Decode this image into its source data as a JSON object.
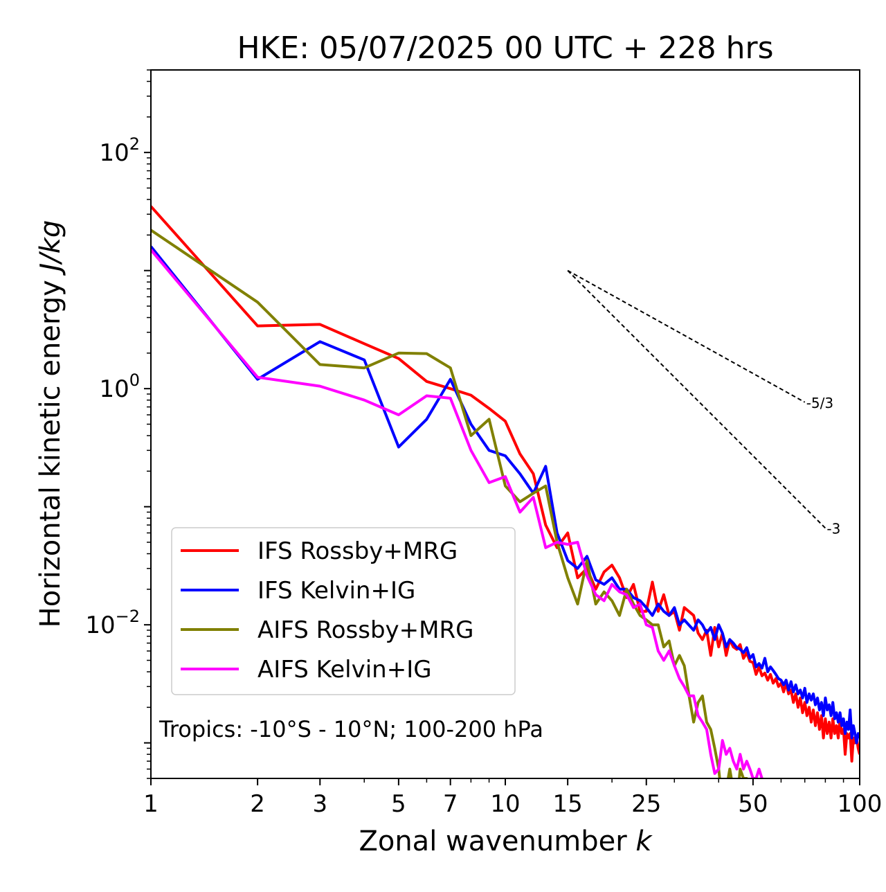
{
  "chart_data": {
    "type": "line",
    "title": "HKE: 05/07/2025 00 UTC + 228 hrs",
    "xlabel_text": "Zonal wavenumber ",
    "xlabel_italic": "k",
    "ylabel_text": "Horizontal kinetic energy ",
    "ylabel_italic": "J/kg",
    "x_scale": "log",
    "y_scale": "log",
    "xlim": [
      1,
      100
    ],
    "ylim": [
      0.0005,
      500
    ],
    "x_ticks": [
      1,
      2,
      3,
      5,
      7,
      10,
      15,
      25,
      50,
      100
    ],
    "x_tick_labels": [
      "1",
      "2",
      "3",
      "5",
      "7",
      "10",
      "15",
      "25",
      "50",
      "100"
    ],
    "y_ticks": [
      {
        "value": 0.01,
        "base": "10",
        "exp": "−2"
      },
      {
        "value": 1,
        "base": "10",
        "exp": "0"
      },
      {
        "value": 100,
        "base": "10",
        "exp": "2"
      }
    ],
    "grid": false,
    "legend_position": "lower-left",
    "annotation": "Tropics: -10°S - 10°N; 100-200 hPa",
    "reference_lines": [
      {
        "label": "-5/3",
        "slope": -1.6667,
        "x0": 15,
        "y0": 10,
        "x1": 70
      },
      {
        "label": "-3",
        "slope": -3,
        "x0": 15,
        "y0": 10,
        "x1": 80
      }
    ],
    "series": [
      {
        "name": "IFS Rossby+MRG",
        "color": "#ff0000",
        "points": [
          [
            1,
            35
          ],
          [
            2,
            3.4
          ],
          [
            3,
            3.5
          ],
          [
            4,
            2.4
          ],
          [
            5,
            1.8
          ],
          [
            6,
            1.15
          ],
          [
            7,
            1.0
          ],
          [
            8,
            0.88
          ],
          [
            9,
            0.68
          ],
          [
            10,
            0.53
          ],
          [
            11,
            0.28
          ],
          [
            12,
            0.19
          ],
          [
            13,
            0.07
          ],
          [
            14,
            0.045
          ],
          [
            15,
            0.06
          ],
          [
            16,
            0.025
          ],
          [
            17,
            0.03
          ],
          [
            18,
            0.02
          ],
          [
            19,
            0.028
          ],
          [
            20,
            0.032
          ],
          [
            21,
            0.025
          ],
          [
            22,
            0.017
          ],
          [
            23,
            0.022
          ],
          [
            24,
            0.013
          ],
          [
            25,
            0.013
          ],
          [
            26,
            0.023
          ],
          [
            27,
            0.013
          ],
          [
            28,
            0.018
          ],
          [
            29,
            0.012
          ],
          [
            30,
            0.013
          ],
          [
            31,
            0.009
          ],
          [
            32,
            0.014
          ],
          [
            34,
            0.012
          ],
          [
            35,
            0.0085
          ],
          [
            36,
            0.0075
          ],
          [
            37,
            0.009
          ],
          [
            38,
            0.0055
          ],
          [
            39,
            0.0095
          ],
          [
            40,
            0.0065
          ],
          [
            41,
            0.0085
          ],
          [
            42,
            0.0055
          ],
          [
            43,
            0.0075
          ],
          [
            44,
            0.0065
          ],
          [
            45,
            0.0062
          ],
          [
            46,
            0.0068
          ],
          [
            47,
            0.0052
          ],
          [
            48,
            0.0058
          ],
          [
            49,
            0.0049
          ],
          [
            50,
            0.0048
          ],
          [
            51,
            0.0038
          ],
          [
            52,
            0.0044
          ],
          [
            53,
            0.0037
          ],
          [
            54,
            0.0039
          ],
          [
            55,
            0.0034
          ],
          [
            56,
            0.0038
          ],
          [
            57,
            0.0032
          ],
          [
            58,
            0.0035
          ],
          [
            59,
            0.003
          ],
          [
            60,
            0.0032
          ],
          [
            61,
            0.0027
          ],
          [
            62,
            0.0032
          ],
          [
            63,
            0.0026
          ],
          [
            64,
            0.0028
          ],
          [
            65,
            0.0022
          ],
          [
            66,
            0.0026
          ],
          [
            67,
            0.002
          ],
          [
            68,
            0.0024
          ],
          [
            69,
            0.0018
          ],
          [
            70,
            0.0022
          ],
          [
            71,
            0.0017
          ],
          [
            72,
            0.002
          ],
          [
            73,
            0.0015
          ],
          [
            74,
            0.0019
          ],
          [
            75,
            0.0014
          ],
          [
            76,
            0.0018
          ],
          [
            77,
            0.0013
          ],
          [
            78,
            0.0017
          ],
          [
            79,
            0.0011
          ],
          [
            80,
            0.0016
          ],
          [
            81,
            0.0012
          ],
          [
            82,
            0.0015
          ],
          [
            83,
            0.0011
          ],
          [
            84,
            0.0016
          ],
          [
            85,
            0.0012
          ],
          [
            86,
            0.0014
          ],
          [
            87,
            0.0011
          ],
          [
            88,
            0.0016
          ],
          [
            89,
            0.0012
          ],
          [
            90,
            0.0013
          ],
          [
            91,
            0.0008
          ],
          [
            92,
            0.0012
          ],
          [
            93,
            0.0011
          ],
          [
            94,
            0.0012
          ],
          [
            95,
            0.0007
          ],
          [
            96,
            0.0011
          ],
          [
            97,
            0.001
          ],
          [
            98,
            0.0011
          ],
          [
            99,
            0.0009
          ],
          [
            100,
            0.0008
          ]
        ]
      },
      {
        "name": "IFS Kelvin+IG",
        "color": "#0000ff",
        "points": [
          [
            1,
            16
          ],
          [
            2,
            1.2
          ],
          [
            3,
            2.5
          ],
          [
            4,
            1.75
          ],
          [
            5,
            0.32
          ],
          [
            6,
            0.55
          ],
          [
            7,
            1.2
          ],
          [
            8,
            0.5
          ],
          [
            9,
            0.3
          ],
          [
            10,
            0.27
          ],
          [
            11,
            0.19
          ],
          [
            12,
            0.13
          ],
          [
            13,
            0.22
          ],
          [
            14,
            0.06
          ],
          [
            15,
            0.035
          ],
          [
            16,
            0.03
          ],
          [
            17,
            0.038
          ],
          [
            18,
            0.024
          ],
          [
            19,
            0.022
          ],
          [
            20,
            0.025
          ],
          [
            21,
            0.02
          ],
          [
            22,
            0.02
          ],
          [
            23,
            0.017
          ],
          [
            24,
            0.016
          ],
          [
            25,
            0.014
          ],
          [
            26,
            0.012
          ],
          [
            27,
            0.015
          ],
          [
            28,
            0.013
          ],
          [
            29,
            0.012
          ],
          [
            30,
            0.014
          ],
          [
            31,
            0.01
          ],
          [
            32,
            0.011
          ],
          [
            34,
            0.009
          ],
          [
            35,
            0.011
          ],
          [
            36,
            0.01
          ],
          [
            37,
            0.0085
          ],
          [
            38,
            0.0095
          ],
          [
            39,
            0.0075
          ],
          [
            40,
            0.01
          ],
          [
            41,
            0.0085
          ],
          [
            42,
            0.0065
          ],
          [
            43,
            0.0075
          ],
          [
            44,
            0.007
          ],
          [
            45,
            0.0064
          ],
          [
            46,
            0.0062
          ],
          [
            47,
            0.0058
          ],
          [
            48,
            0.0064
          ],
          [
            49,
            0.0052
          ],
          [
            50,
            0.0056
          ],
          [
            51,
            0.0044
          ],
          [
            52,
            0.0047
          ],
          [
            53,
            0.0043
          ],
          [
            54,
            0.0052
          ],
          [
            55,
            0.004
          ],
          [
            56,
            0.0044
          ],
          [
            57,
            0.0041
          ],
          [
            58,
            0.0038
          ],
          [
            59,
            0.0035
          ],
          [
            60,
            0.0034
          ],
          [
            61,
            0.0031
          ],
          [
            62,
            0.0034
          ],
          [
            63,
            0.0028
          ],
          [
            64,
            0.0033
          ],
          [
            65,
            0.0027
          ],
          [
            66,
            0.0031
          ],
          [
            67,
            0.0026
          ],
          [
            68,
            0.0028
          ],
          [
            69,
            0.0024
          ],
          [
            70,
            0.0029
          ],
          [
            71,
            0.0022
          ],
          [
            72,
            0.0026
          ],
          [
            73,
            0.0023
          ],
          [
            74,
            0.0026
          ],
          [
            75,
            0.0021
          ],
          [
            76,
            0.0024
          ],
          [
            77,
            0.0019
          ],
          [
            78,
            0.0022
          ],
          [
            79,
            0.0017
          ],
          [
            80,
            0.0024
          ],
          [
            81,
            0.0019
          ],
          [
            82,
            0.0021
          ],
          [
            83,
            0.0017
          ],
          [
            84,
            0.0022
          ],
          [
            85,
            0.0016
          ],
          [
            86,
            0.0018
          ],
          [
            87,
            0.0015
          ],
          [
            88,
            0.0018
          ],
          [
            89,
            0.0014
          ],
          [
            90,
            0.0016
          ],
          [
            91,
            0.0012
          ],
          [
            92,
            0.0015
          ],
          [
            93,
            0.0013
          ],
          [
            94,
            0.0019
          ],
          [
            95,
            0.0011
          ],
          [
            96,
            0.0014
          ],
          [
            97,
            0.0012
          ],
          [
            98,
            0.001
          ],
          [
            99,
            0.0012
          ],
          [
            100,
            0.0011
          ]
        ]
      },
      {
        "name": "AIFS Rossby+MRG",
        "color": "#808000",
        "points": [
          [
            1,
            22
          ],
          [
            2,
            5.4
          ],
          [
            3,
            1.6
          ],
          [
            4,
            1.5
          ],
          [
            5,
            2.0
          ],
          [
            6,
            1.98
          ],
          [
            7,
            1.5
          ],
          [
            8,
            0.4
          ],
          [
            9,
            0.55
          ],
          [
            10,
            0.15
          ],
          [
            11,
            0.11
          ],
          [
            12,
            0.13
          ],
          [
            13,
            0.15
          ],
          [
            14,
            0.05
          ],
          [
            15,
            0.025
          ],
          [
            16,
            0.015
          ],
          [
            17,
            0.035
          ],
          [
            18,
            0.015
          ],
          [
            19,
            0.019
          ],
          [
            20,
            0.016
          ],
          [
            21,
            0.012
          ],
          [
            22,
            0.02
          ],
          [
            23,
            0.015
          ],
          [
            24,
            0.012
          ],
          [
            25,
            0.011
          ],
          [
            26,
            0.01
          ],
          [
            27,
            0.01
          ],
          [
            28,
            0.0065
          ],
          [
            29,
            0.0073
          ],
          [
            30,
            0.0045
          ],
          [
            31,
            0.0055
          ],
          [
            32,
            0.0045
          ],
          [
            33,
            0.0025
          ],
          [
            34,
            0.0015
          ],
          [
            35,
            0.0022
          ],
          [
            36,
            0.0025
          ],
          [
            37,
            0.0015
          ],
          [
            38,
            0.0013
          ],
          [
            39,
            0.0009
          ],
          [
            40,
            0.0006
          ],
          [
            41,
            0.0003
          ],
          [
            42,
            0.0004
          ],
          [
            43,
            0.0006
          ],
          [
            44,
            0.0004
          ],
          [
            45,
            0.0003
          ],
          [
            46,
            0.0006
          ],
          [
            47,
            0.0005
          ],
          [
            48,
            0.0005
          ],
          [
            49,
            0.0003
          ]
        ]
      },
      {
        "name": "AIFS Kelvin+IG",
        "color": "#ff00ff",
        "points": [
          [
            1,
            15
          ],
          [
            2,
            1.25
          ],
          [
            3,
            1.05
          ],
          [
            4,
            0.8
          ],
          [
            5,
            0.6
          ],
          [
            6,
            0.87
          ],
          [
            7,
            0.83
          ],
          [
            8,
            0.3
          ],
          [
            9,
            0.16
          ],
          [
            10,
            0.18
          ],
          [
            11,
            0.09
          ],
          [
            12,
            0.12
          ],
          [
            13,
            0.045
          ],
          [
            14,
            0.05
          ],
          [
            15,
            0.048
          ],
          [
            16,
            0.05
          ],
          [
            17,
            0.026
          ],
          [
            18,
            0.018
          ],
          [
            19,
            0.016
          ],
          [
            20,
            0.022
          ],
          [
            21,
            0.019
          ],
          [
            22,
            0.018
          ],
          [
            23,
            0.014
          ],
          [
            24,
            0.015
          ],
          [
            25,
            0.01
          ],
          [
            26,
            0.0095
          ],
          [
            27,
            0.006
          ],
          [
            28,
            0.005
          ],
          [
            29,
            0.006
          ],
          [
            30,
            0.0045
          ],
          [
            31,
            0.0035
          ],
          [
            32,
            0.003
          ],
          [
            33,
            0.0025
          ],
          [
            34,
            0.0025
          ],
          [
            35,
            0.0017
          ],
          [
            36,
            0.0015
          ],
          [
            37,
            0.0013
          ],
          [
            38,
            0.0008
          ],
          [
            39,
            0.00055
          ],
          [
            40,
            0.0006
          ],
          [
            41,
            0.00105
          ],
          [
            42,
            0.0008
          ],
          [
            43,
            0.0009
          ],
          [
            44,
            0.0007
          ],
          [
            45,
            0.0006
          ],
          [
            46,
            0.0008
          ],
          [
            47,
            0.0006
          ],
          [
            48,
            0.0007
          ],
          [
            49,
            0.0006
          ],
          [
            50,
            0.0005
          ],
          [
            51,
            0.0005
          ],
          [
            52,
            0.0006
          ],
          [
            53,
            0.0005
          ]
        ]
      }
    ]
  }
}
